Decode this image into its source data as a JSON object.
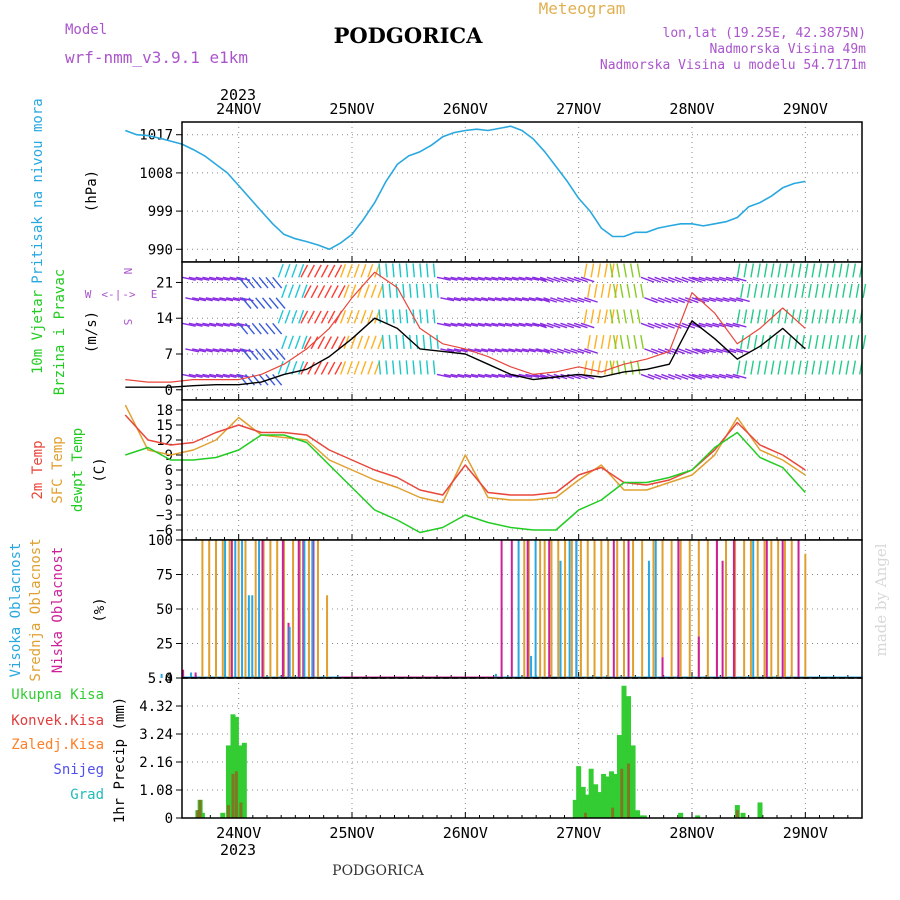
{
  "header": {
    "model_label": "Model",
    "model_name": "wrf-nmm_v3.9.1 e1km",
    "title": "PODGORICA",
    "meteogram_label": "Meteogram",
    "lonlat": "lon,lat (19.25E, 42.3875N)",
    "elevation": "Nadmorska Visina 49m",
    "model_elevation": "Nadmorska Visina u modelu 54.7171m"
  },
  "footer": {
    "station": "PODGORICA",
    "watermark": "made by Angel"
  },
  "colors": {
    "pressure": "#29a8e0",
    "t2m": "#e8473c",
    "sfc": "#e0a030",
    "dewpt": "#22cc22",
    "high_cloud": "#29a8e0",
    "mid_cloud": "#e0a030",
    "low_cloud": "#cc2299",
    "precip_total": "#33cc33",
    "precip_conv": "#e23c3c",
    "frozen": "#ff7f27",
    "snow": "#5050ee",
    "hail": "#22bbbb",
    "wind_speed": "#000000",
    "wind_gust": "#e8473c",
    "compass": "#aa55cc"
  },
  "chart_data": [
    {
      "type": "line",
      "panel": "pressure",
      "ylabel_lines": [
        "Pritisak na nivou mora",
        "(hPa)"
      ],
      "year": "2023",
      "day_labels": [
        "24NOV",
        "25NOV",
        "26NOV",
        "27NOV",
        "28NOV",
        "29NOV"
      ],
      "ylim": [
        987,
        1020
      ],
      "yticks": [
        990,
        999,
        1008,
        1017
      ],
      "grid": true,
      "series": [
        {
          "x": [
            0,
            0.1,
            0.2,
            0.3,
            0.4,
            0.5,
            0.6,
            0.7,
            0.8,
            0.9,
            1.0,
            1.1,
            1.2,
            1.3,
            1.4,
            1.5,
            1.6,
            1.7,
            1.8,
            1.9,
            2.0,
            2.1,
            2.2,
            2.3,
            2.4,
            2.5,
            2.6,
            2.7,
            2.8,
            2.9,
            3.0,
            3.1,
            3.2,
            3.3,
            3.4,
            3.5,
            3.6,
            3.7,
            3.8,
            3.9,
            4.0,
            4.1,
            4.2,
            4.3,
            4.4,
            4.5,
            4.6,
            4.7,
            4.8,
            4.9,
            5.0,
            5.1,
            5.2,
            5.3,
            5.4,
            5.5,
            5.6,
            5.7,
            5.8,
            5.9,
            6.0
          ],
          "values": [
            1018.0,
            1017.0,
            1016.8,
            1016.2,
            1015.5,
            1014.8,
            1013.5,
            1012.0,
            1010.0,
            1008.0,
            1005.0,
            1002.0,
            999.0,
            996.0,
            993.5,
            992.5,
            991.8,
            991.0,
            990.0,
            991.5,
            993.5,
            997.0,
            1001.0,
            1006.0,
            1010.0,
            1012.0,
            1013.0,
            1014.5,
            1016.5,
            1017.5,
            1018.0,
            1018.3,
            1018.0,
            1018.5,
            1019.0,
            1018.0,
            1016.0,
            1013.0,
            1009.5,
            1006.0,
            1002.0,
            999.0,
            995.0,
            993.0,
            993.0,
            994.0,
            994.0,
            995.0,
            995.5,
            996.0,
            996.0,
            995.5,
            996.0,
            996.5,
            997.5,
            1000.0,
            1001.0,
            1002.5,
            1004.5,
            1005.5,
            1006.0
          ]
        }
      ]
    },
    {
      "type": "line",
      "panel": "wind",
      "ylabel_lines": [
        "10m Vjetar",
        "Brzina i Pravac",
        "(m/s)"
      ],
      "compass": [
        "W",
        "<-",
        "|",
        "->",
        "E",
        "N",
        "S"
      ],
      "ylim": [
        -2,
        25
      ],
      "yticks": [
        0,
        7,
        14,
        21
      ],
      "grid": true,
      "series": [
        {
          "name": "wind_speed",
          "x": [
            0,
            0.2,
            0.4,
            0.6,
            0.8,
            1.0,
            1.2,
            1.4,
            1.6,
            1.8,
            2.0,
            2.2,
            2.4,
            2.6,
            2.8,
            3.0,
            3.2,
            3.4,
            3.6,
            3.8,
            4.0,
            4.2,
            4.4,
            4.6,
            4.8,
            5.0,
            5.2,
            5.4,
            5.6,
            5.8,
            6.0
          ],
          "values": [
            0.5,
            0.5,
            0.5,
            0.8,
            1.0,
            1.0,
            1.5,
            3.0,
            4.0,
            6.5,
            10.0,
            14.0,
            12.0,
            8.0,
            7.5,
            7.0,
            5.0,
            3.0,
            2.0,
            2.5,
            3.0,
            2.5,
            3.5,
            4.0,
            5.0,
            13.5,
            10.0,
            6.0,
            8.5,
            12.0,
            8.0
          ]
        },
        {
          "name": "wind_gust",
          "x": [
            0,
            0.2,
            0.4,
            0.6,
            0.8,
            1.0,
            1.2,
            1.4,
            1.6,
            1.8,
            2.0,
            2.2,
            2.4,
            2.6,
            2.8,
            3.0,
            3.2,
            3.4,
            3.6,
            3.8,
            4.0,
            4.2,
            4.4,
            4.6,
            4.8,
            5.0,
            5.2,
            5.4,
            5.6,
            5.8,
            6.0
          ],
          "values": [
            2.0,
            1.5,
            1.5,
            2.0,
            2.0,
            2.0,
            3.0,
            5.0,
            8.0,
            12.0,
            18.0,
            23.0,
            20.0,
            12.0,
            9.0,
            8.0,
            6.5,
            4.5,
            3.0,
            3.5,
            4.5,
            3.5,
            5.0,
            6.0,
            7.5,
            19.0,
            15.0,
            9.0,
            12.0,
            16.0,
            12.0
          ]
        }
      ]
    },
    {
      "type": "line",
      "panel": "temperature",
      "ylabel_lines": [
        "2m Temp",
        "SFC Temp",
        "dewpt Temp",
        "(C)"
      ],
      "ylim": [
        -8,
        20
      ],
      "yticks": [
        -6,
        -3,
        0,
        3,
        6,
        9,
        12,
        15,
        18
      ],
      "grid": true,
      "series": [
        {
          "name": "2m Temp",
          "x": [
            0,
            0.2,
            0.4,
            0.6,
            0.8,
            1.0,
            1.2,
            1.4,
            1.6,
            1.8,
            2.0,
            2.2,
            2.4,
            2.6,
            2.8,
            3.0,
            3.2,
            3.4,
            3.6,
            3.8,
            4.0,
            4.2,
            4.4,
            4.6,
            4.8,
            5.0,
            5.2,
            5.4,
            5.6,
            5.8,
            6.0
          ],
          "values": [
            17.0,
            12.0,
            11.0,
            11.5,
            13.5,
            15.0,
            13.5,
            13.5,
            13.0,
            10.0,
            8.0,
            6.0,
            4.5,
            2.0,
            1.0,
            7.0,
            1.5,
            1.0,
            1.0,
            1.5,
            5.0,
            6.5,
            3.5,
            3.0,
            4.0,
            6.0,
            10.0,
            15.5,
            11.0,
            9.0,
            6.0
          ]
        },
        {
          "name": "SFC Temp",
          "x": [
            0,
            0.2,
            0.4,
            0.6,
            0.8,
            1.0,
            1.2,
            1.4,
            1.6,
            1.8,
            2.0,
            2.2,
            2.4,
            2.6,
            2.8,
            3.0,
            3.2,
            3.4,
            3.6,
            3.8,
            4.0,
            4.2,
            4.4,
            4.6,
            4.8,
            5.0,
            5.2,
            5.4,
            5.6,
            5.8,
            6.0
          ],
          "values": [
            19.0,
            10.0,
            9.0,
            10.0,
            12.0,
            16.5,
            13.0,
            12.5,
            12.0,
            8.0,
            6.0,
            4.0,
            2.5,
            0.5,
            -0.5,
            9.0,
            0.5,
            0.0,
            0.0,
            0.5,
            4.0,
            7.0,
            2.0,
            2.0,
            3.5,
            5.0,
            9.0,
            16.5,
            10.0,
            8.0,
            5.0
          ]
        },
        {
          "name": "dewpt Temp",
          "x": [
            0,
            0.2,
            0.4,
            0.6,
            0.8,
            1.0,
            1.2,
            1.4,
            1.6,
            1.8,
            2.0,
            2.2,
            2.4,
            2.6,
            2.8,
            3.0,
            3.2,
            3.4,
            3.6,
            3.8,
            4.0,
            4.2,
            4.4,
            4.6,
            4.8,
            5.0,
            5.2,
            5.4,
            5.6,
            5.8,
            6.0
          ],
          "values": [
            9.0,
            10.5,
            8.0,
            8.0,
            8.5,
            10.0,
            13.0,
            13.0,
            11.5,
            7.0,
            2.5,
            -2.0,
            -4.0,
            -6.5,
            -5.5,
            -3.0,
            -4.5,
            -5.5,
            -6.0,
            -6.0,
            -2.0,
            0.0,
            3.5,
            3.5,
            4.5,
            6.0,
            10.5,
            13.5,
            8.5,
            6.5,
            1.5
          ]
        }
      ]
    },
    {
      "type": "bar",
      "panel": "cloud",
      "ylabel_lines": [
        "Visoka Oblacnost",
        "Srednja Oblacnost",
        "Niska Oblacnost",
        "(%)"
      ],
      "ylim": [
        0,
        100
      ],
      "yticks": [
        0,
        25,
        50,
        75,
        100
      ],
      "grid": true,
      "series": [
        {
          "name": "Visoka Oblacnost",
          "x": [
            0.32,
            0.58,
            0.88,
            0.97,
            1.03,
            1.09,
            1.12,
            1.18,
            1.45,
            1.58,
            1.65,
            3.27,
            3.47,
            3.58,
            3.62,
            3.84,
            3.92,
            3.98,
            4.62,
            4.68,
            5.54
          ],
          "values": [
            3,
            4,
            100,
            100,
            100,
            60,
            60,
            100,
            37,
            100,
            100,
            3,
            100,
            16,
            100,
            85,
            100,
            100,
            85,
            100,
            100
          ]
        },
        {
          "name": "Srednja Oblacnost",
          "x": [
            0.05,
            0.68,
            0.74,
            0.8,
            0.86,
            0.92,
            1.0,
            1.06,
            1.15,
            1.22,
            1.28,
            1.34,
            1.4,
            1.48,
            1.54,
            1.62,
            1.7,
            1.78,
            3.52,
            3.56,
            3.66,
            3.7,
            3.76,
            3.82,
            3.88,
            3.94,
            4.02,
            4.08,
            4.14,
            4.2,
            4.26,
            4.34,
            4.4,
            4.48,
            4.56,
            4.66,
            4.74,
            4.82,
            4.9,
            4.98,
            5.06,
            5.14,
            5.22,
            5.3,
            5.38,
            5.46,
            5.52,
            5.58,
            5.64,
            5.7,
            5.76,
            5.82,
            5.88,
            5.94,
            6.0
          ],
          "values": [
            0,
            100,
            100,
            100,
            100,
            100,
            100,
            100,
            100,
            100,
            100,
            100,
            100,
            100,
            100,
            100,
            100,
            60,
            100,
            100,
            100,
            100,
            100,
            100,
            100,
            100,
            100,
            100,
            100,
            100,
            100,
            100,
            100,
            100,
            100,
            100,
            100,
            100,
            100,
            100,
            100,
            100,
            100,
            100,
            100,
            100,
            100,
            100,
            100,
            100,
            100,
            100,
            100,
            100,
            90
          ]
        },
        {
          "name": "Niska Oblacnost",
          "x": [
            0.51,
            0.62,
            0.94,
            1.21,
            1.39,
            1.44,
            1.53,
            1.57,
            1.66,
            3.32,
            3.41,
            3.55,
            3.74,
            3.98,
            4.31,
            4.44,
            4.74,
            4.88,
            5.06,
            5.22,
            5.27,
            5.37,
            5.66,
            5.8,
            5.94
          ],
          "values": [
            6,
            4,
            100,
            100,
            100,
            40,
            100,
            100,
            100,
            100,
            100,
            100,
            100,
            100,
            100,
            100,
            15,
            100,
            30,
            100,
            85,
            100,
            100,
            100,
            100
          ]
        }
      ]
    },
    {
      "type": "bar",
      "panel": "precip",
      "ylabel_lines": [
        "1hr Precip (mm)"
      ],
      "legend": [
        "Ukupna Kisa",
        "Konvek.Kisa",
        "Zaledj.Kisa",
        "Snijeg",
        "Grad"
      ],
      "ylim": [
        0,
        5.4
      ],
      "yticks": [
        0,
        1.08,
        2.16,
        3.24,
        4.32,
        5.4
      ],
      "ytick_labels": [
        "0",
        "1.08",
        "2.16",
        "3.24",
        "4.32",
        "5.4"
      ],
      "grid": true,
      "series": [
        {
          "name": "Ukupna Kisa",
          "x": [
            0.64,
            0.66,
            0.68,
            0.86,
            0.91,
            0.95,
            0.98,
            1.02,
            1.05,
            3.97,
            4.0,
            4.04,
            4.08,
            4.11,
            4.15,
            4.18,
            4.22,
            4.26,
            4.29,
            4.32,
            4.36,
            4.4,
            4.44,
            4.48,
            4.52,
            4.55,
            4.58,
            4.9,
            5.05,
            5.4,
            5.45,
            5.6
          ],
          "values": [
            0.3,
            0.7,
            0.2,
            0.2,
            2.8,
            4.0,
            3.9,
            2.8,
            2.9,
            0.7,
            2.0,
            1.2,
            0.9,
            1.9,
            1.3,
            1.0,
            1.7,
            1.6,
            1.8,
            1.7,
            3.2,
            5.1,
            4.7,
            2.8,
            0.3,
            0.1,
            0.1,
            0.2,
            0.1,
            0.5,
            0.2,
            0.6
          ]
        },
        {
          "name": "Konvek.Kisa",
          "x": [
            0.64,
            0.66,
            0.91,
            0.95,
            0.98,
            1.02,
            4.06,
            4.3,
            4.38,
            4.44,
            5.4
          ],
          "values": [
            0.3,
            0.7,
            0.5,
            1.7,
            1.8,
            0.6,
            0.2,
            0.4,
            1.9,
            2.1,
            0.3
          ]
        },
        {
          "name": "Zaledj.Kisa",
          "x": [
            1.0
          ],
          "values": [
            0.0
          ]
        },
        {
          "name": "Snijeg",
          "x": [
            1.0
          ],
          "values": [
            0.0
          ]
        },
        {
          "name": "Grad",
          "x": [
            1.0
          ],
          "values": [
            0.0
          ]
        }
      ]
    }
  ]
}
